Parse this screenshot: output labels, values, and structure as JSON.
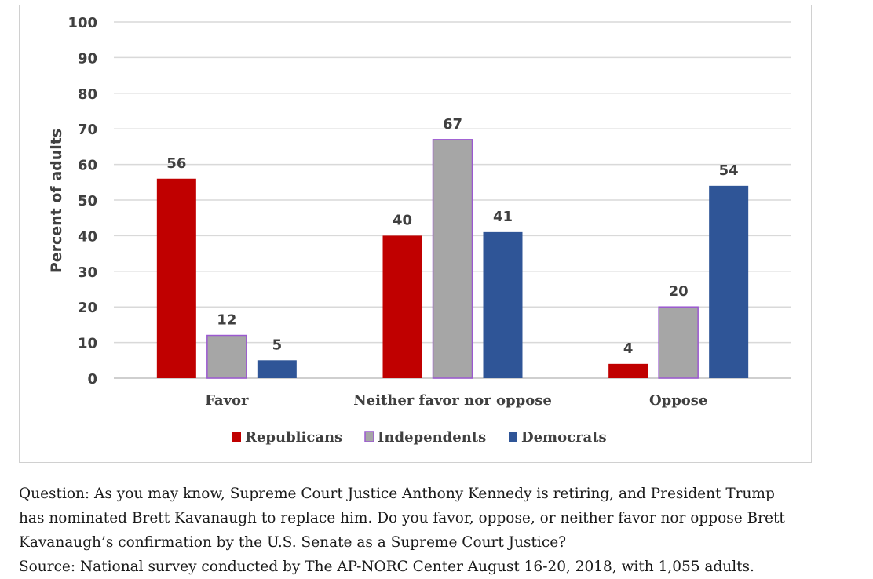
{
  "chart_data": {
    "type": "bar",
    "categories": [
      "Favor",
      "Neither favor nor oppose",
      "Oppose"
    ],
    "series": [
      {
        "name": "Republicans",
        "values": [
          56,
          40,
          4
        ],
        "color": "#c00000"
      },
      {
        "name": "Independents",
        "values": [
          12,
          67,
          20
        ],
        "color": "#a6a6a6",
        "border": "#9b59d0"
      },
      {
        "name": "Democrats",
        "values": [
          5,
          41,
          54
        ],
        "color": "#2f5597"
      }
    ],
    "ylabel": "Percent of adults",
    "xlabel": "",
    "ylim": [
      0,
      100
    ],
    "yticks": [
      0,
      10,
      20,
      30,
      40,
      50,
      60,
      70,
      80,
      90,
      100
    ],
    "grid": true,
    "legend": "bottom"
  },
  "notes": {
    "question_line1": "Question: As you may know, Supreme Court Justice Anthony Kennedy is retiring, and President Trump",
    "question_line2": "has nominated Brett Kavanaugh to replace him. Do you favor, oppose, or neither favor nor oppose Brett",
    "question_line3": "Kavanaugh’s confirmation by the U.S. Senate as a Supreme Court Justice?",
    "source": "Source: National survey conducted by The AP-NORC Center August 16-20, 2018, with 1,055 adults."
  }
}
